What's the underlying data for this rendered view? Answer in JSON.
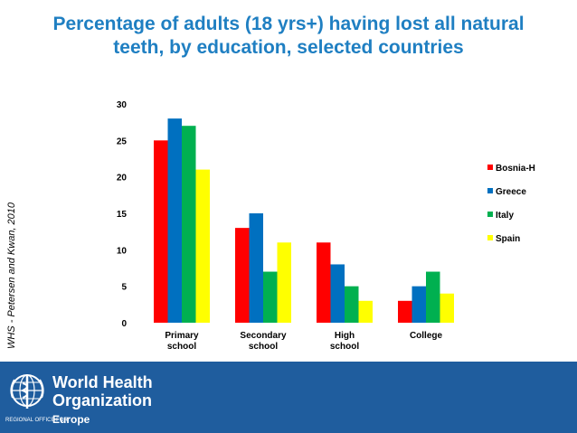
{
  "page": {
    "title": "Percentage of adults (18 yrs+) having lost all natural\nteeth, by education, selected countries",
    "source": "WHS - Petersen and Kwan, 2010"
  },
  "chart_data": {
    "type": "bar",
    "title": "Percentage of adults (18 yrs+) having lost all natural teeth, by education, selected countries",
    "xlabel": "",
    "ylabel": "",
    "categories": [
      "Primary\nschool",
      "Secondary\nschool",
      "High\nschool",
      "College"
    ],
    "series": [
      {
        "name": "Bosnia-H",
        "color": "#ff0000",
        "values": [
          25,
          13,
          11,
          3
        ]
      },
      {
        "name": "Greece",
        "color": "#0070c0",
        "values": [
          28,
          15,
          8,
          5
        ]
      },
      {
        "name": "Italy",
        "color": "#00b050",
        "values": [
          27,
          7,
          5,
          7
        ]
      },
      {
        "name": "Spain",
        "color": "#ffff00",
        "values": [
          21,
          11,
          3,
          4
        ]
      }
    ],
    "ylim": [
      0,
      30
    ],
    "yticks": [
      0,
      5,
      10,
      15,
      20,
      25,
      30
    ],
    "grid": false,
    "legend": "right"
  },
  "footer": {
    "org_name": "World Health\nOrganization",
    "region_label": "REGIONAL OFFICE FOR",
    "region": "Europe",
    "logo_icon": "who-emblem-icon",
    "background_color": "#1f5d9e"
  }
}
